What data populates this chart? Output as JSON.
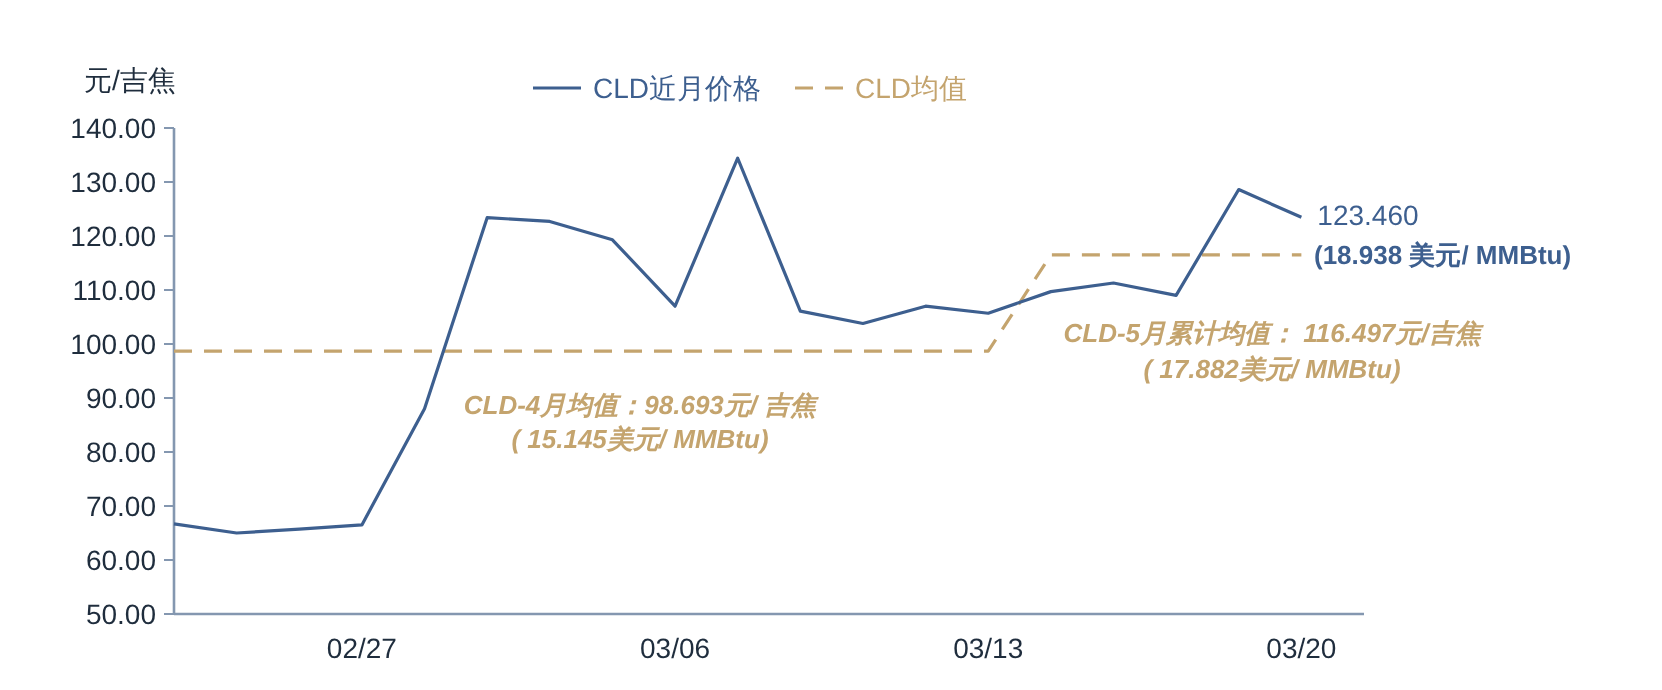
{
  "chart_data": {
    "type": "line",
    "ylabel": "元/吉焦",
    "categories": [
      null,
      null,
      null,
      "02/27",
      null,
      null,
      null,
      null,
      "03/06",
      null,
      null,
      null,
      null,
      "03/13",
      null,
      null,
      null,
      null,
      "03/20"
    ],
    "series": [
      {
        "name": "CLD近月价格",
        "color": "#3d5f8f",
        "line_style": "solid",
        "values": [
          66.7,
          65.0,
          65.7,
          66.5,
          88.0,
          123.4,
          122.7,
          119.3,
          107.0,
          134.4,
          106.1,
          103.8,
          107.0,
          105.7,
          109.7,
          111.3,
          109.0,
          128.6,
          123.46
        ]
      },
      {
        "name": "CLD均值",
        "color": "#c4a46e",
        "line_style": "dashed",
        "values": [
          98.693,
          98.693,
          98.693,
          98.693,
          98.693,
          98.693,
          98.693,
          98.693,
          98.693,
          98.693,
          98.693,
          98.693,
          98.693,
          98.693,
          116.497,
          116.497,
          116.497,
          116.497,
          116.497
        ]
      }
    ],
    "ylim": [
      50,
      140
    ],
    "yticks": [
      {
        "value": 50,
        "label": "50.00"
      },
      {
        "value": 60,
        "label": "60.00"
      },
      {
        "value": 70,
        "label": "70.00"
      },
      {
        "value": 80,
        "label": "80.00"
      },
      {
        "value": 90,
        "label": "90.00"
      },
      {
        "value": 100,
        "label": "100.00"
      },
      {
        "value": 110,
        "label": "110.00"
      },
      {
        "value": 120,
        "label": "120.00"
      },
      {
        "value": 130,
        "label": "130.00"
      },
      {
        "value": 140,
        "label": "140.00"
      }
    ],
    "legend": "top",
    "annotations": [
      {
        "text": "123.460",
        "x": "03/20",
        "y": 123.46
      },
      "(18.938 美元/ MMBtu)",
      "CLD-4月均值：98.693元/ 吉焦",
      "( 15.145美元/ MMBtu)",
      "CLD-5月累计均值： 116.497元/吉焦",
      "( 17.882美元/ MMBtu)"
    ]
  }
}
